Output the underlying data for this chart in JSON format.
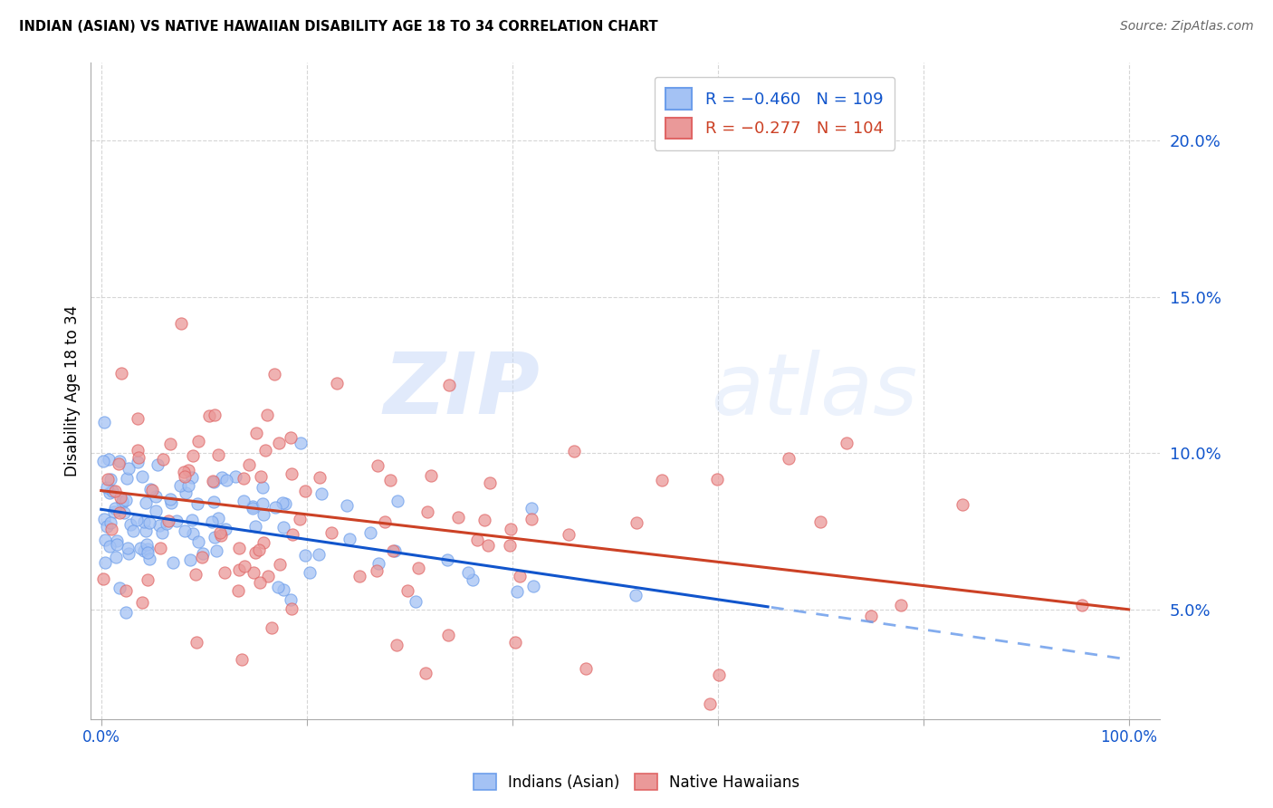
{
  "title": "INDIAN (ASIAN) VS NATIVE HAWAIIAN DISABILITY AGE 18 TO 34 CORRELATION CHART",
  "source": "Source: ZipAtlas.com",
  "ylabel": "Disability Age 18 to 34",
  "legend_blue": "R = −0.460   N = 109",
  "legend_pink": "R = −0.277   N = 104",
  "blue_fill": "#a4c2f4",
  "pink_fill": "#ea9999",
  "blue_edge": "#6d9eeb",
  "pink_edge": "#e06666",
  "blue_line_color": "#1155cc",
  "pink_line_color": "#cc4125",
  "blue_line_dash_color": "#6d9eeb",
  "watermark_zip": "#c9daf8",
  "watermark_atlas": "#c9daf8",
  "background_color": "#ffffff",
  "grid_color": "#cccccc",
  "ytick_color": "#1155cc",
  "xtick_color": "#1155cc",
  "title_color": "#000000",
  "source_color": "#666666",
  "ylabel_color": "#000000",
  "blue_seed": 42,
  "pink_seed": 7,
  "N_blue": 109,
  "N_pink": 104,
  "blue_x_scale": 12,
  "blue_intercept": 8.2,
  "blue_slope": -0.048,
  "blue_noise": 1.2,
  "pink_x_scale": 25,
  "pink_intercept": 8.8,
  "pink_slope": -0.038,
  "pink_noise": 2.5,
  "blue_line_solid_end": 65,
  "xlim_min": -1,
  "xlim_max": 103,
  "ylim_min": 1.5,
  "ylim_max": 22.5,
  "yticks": [
    5,
    10,
    15,
    20
  ],
  "marker_size": 90,
  "marker_alpha": 0.75
}
